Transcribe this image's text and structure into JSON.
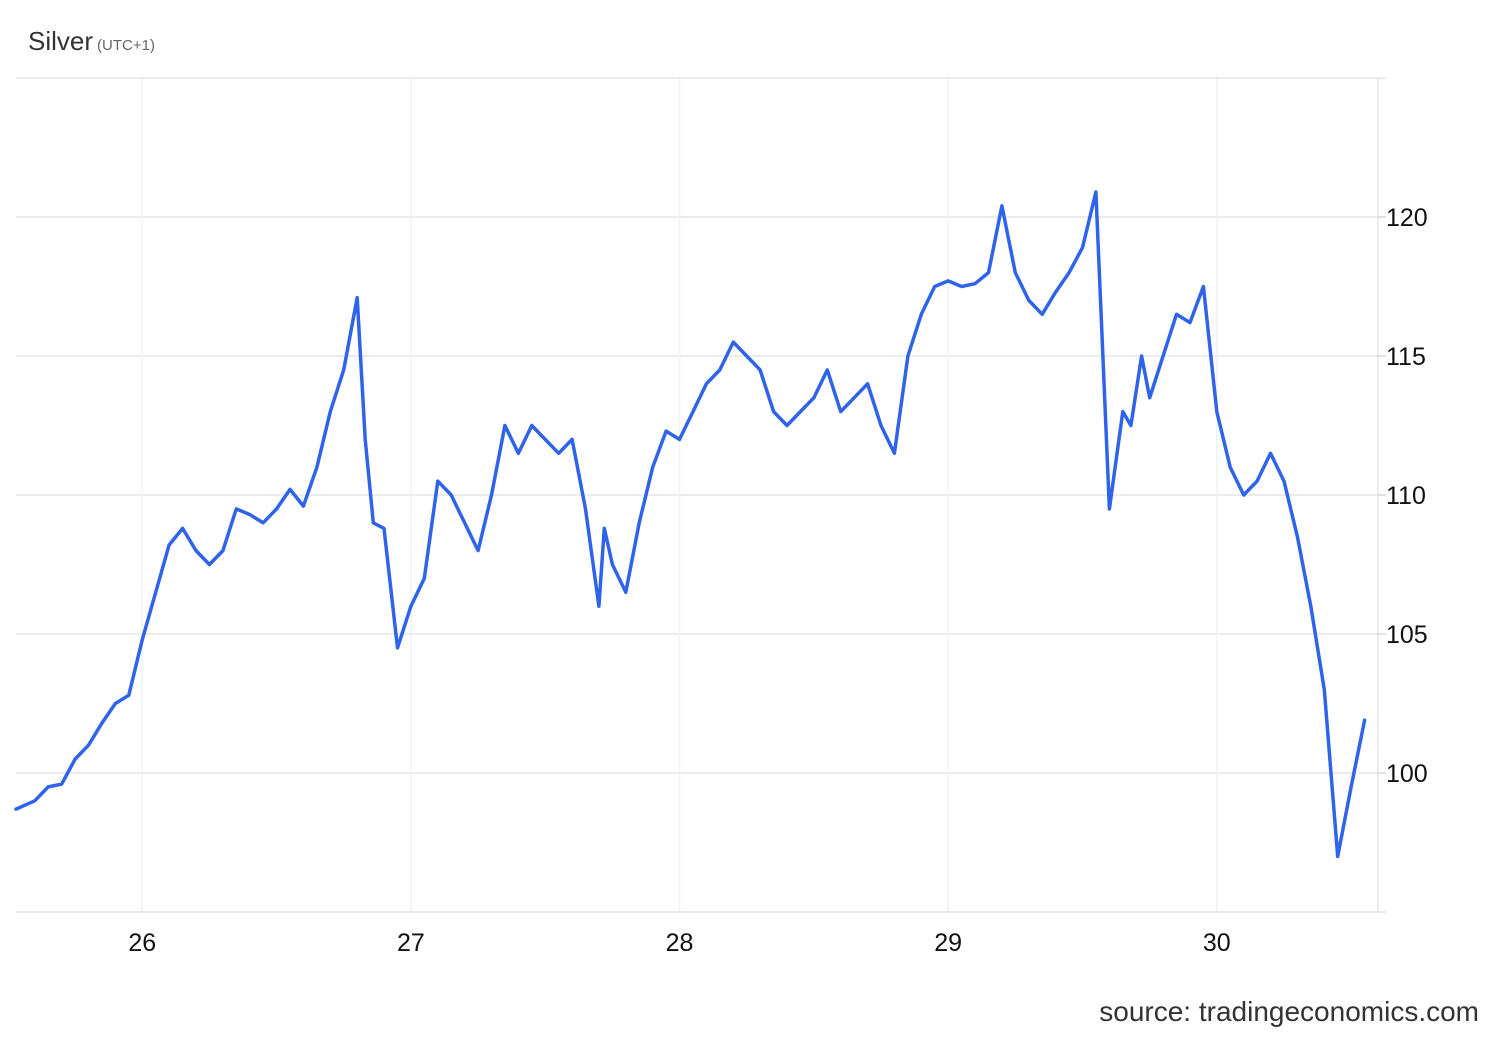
{
  "chart_data": {
    "type": "line",
    "title": "Silver",
    "subtitle": "(UTC+1)",
    "source": "source: tradingeconomics.com",
    "xlabel": "",
    "ylabel": "",
    "x_ticks": [
      "26",
      "27",
      "28",
      "29",
      "30"
    ],
    "y_ticks": [
      "100",
      "105",
      "110",
      "115",
      "120"
    ],
    "xlim": [
      25.53,
      30.6
    ],
    "ylim": [
      95,
      125
    ],
    "grid": true,
    "legend": "none",
    "line_color": "#2f64ea",
    "series": [
      {
        "x": [
          25.53,
          25.6,
          25.65,
          25.7,
          25.75,
          25.8,
          25.85,
          25.9,
          25.95,
          26.0,
          26.05,
          26.1,
          26.15,
          26.2,
          26.25,
          26.3,
          26.35,
          26.4,
          26.45,
          26.5,
          26.55,
          26.6,
          26.65,
          26.7,
          26.75,
          26.8,
          26.83,
          26.86,
          26.9,
          26.95,
          27.0,
          27.05,
          27.1,
          27.15,
          27.2,
          27.25,
          27.3,
          27.35,
          27.4,
          27.45,
          27.5,
          27.55,
          27.6,
          27.65,
          27.7,
          27.72,
          27.75,
          27.8,
          27.85,
          27.9,
          27.95,
          28.0,
          28.05,
          28.1,
          28.15,
          28.2,
          28.25,
          28.3,
          28.35,
          28.4,
          28.45,
          28.5,
          28.55,
          28.6,
          28.65,
          28.7,
          28.75,
          28.8,
          28.85,
          28.9,
          28.95,
          29.0,
          29.05,
          29.1,
          29.15,
          29.2,
          29.25,
          29.3,
          29.35,
          29.4,
          29.45,
          29.5,
          29.55,
          29.6,
          29.65,
          29.68,
          29.72,
          29.75,
          29.8,
          29.85,
          29.9,
          29.95,
          30.0,
          30.05,
          30.1,
          30.15,
          30.2,
          30.25,
          30.3,
          30.35,
          30.4,
          30.45,
          30.5,
          30.55
        ],
        "values": [
          98.7,
          99.0,
          99.5,
          99.6,
          100.5,
          101.0,
          101.8,
          102.5,
          102.8,
          104.8,
          106.5,
          108.2,
          108.8,
          108.0,
          107.5,
          108.0,
          109.5,
          109.3,
          109.0,
          109.5,
          110.2,
          109.6,
          111.0,
          113.0,
          114.5,
          117.1,
          112.0,
          109.0,
          108.8,
          104.5,
          106.0,
          107.0,
          110.5,
          110.0,
          109.0,
          108.0,
          110.0,
          112.5,
          111.5,
          112.5,
          112.0,
          111.5,
          112.0,
          109.5,
          106.0,
          108.8,
          107.5,
          106.5,
          109.0,
          111.0,
          112.3,
          112.0,
          113.0,
          114.0,
          114.5,
          115.5,
          115.0,
          114.5,
          113.0,
          112.5,
          113.0,
          113.5,
          114.5,
          113.0,
          113.5,
          114.0,
          112.5,
          111.5,
          115.0,
          116.5,
          117.5,
          117.7,
          117.5,
          117.6,
          118.0,
          120.4,
          118.0,
          117.0,
          116.5,
          117.3,
          118.0,
          118.9,
          120.9,
          109.5,
          113.0,
          112.5,
          115.0,
          113.5,
          115.0,
          116.5,
          116.2,
          117.5,
          113.0,
          111.0,
          110.0,
          110.5,
          111.5,
          110.5,
          108.5,
          106.0,
          103.0,
          97.0,
          99.5,
          101.9
        ]
      }
    ]
  }
}
